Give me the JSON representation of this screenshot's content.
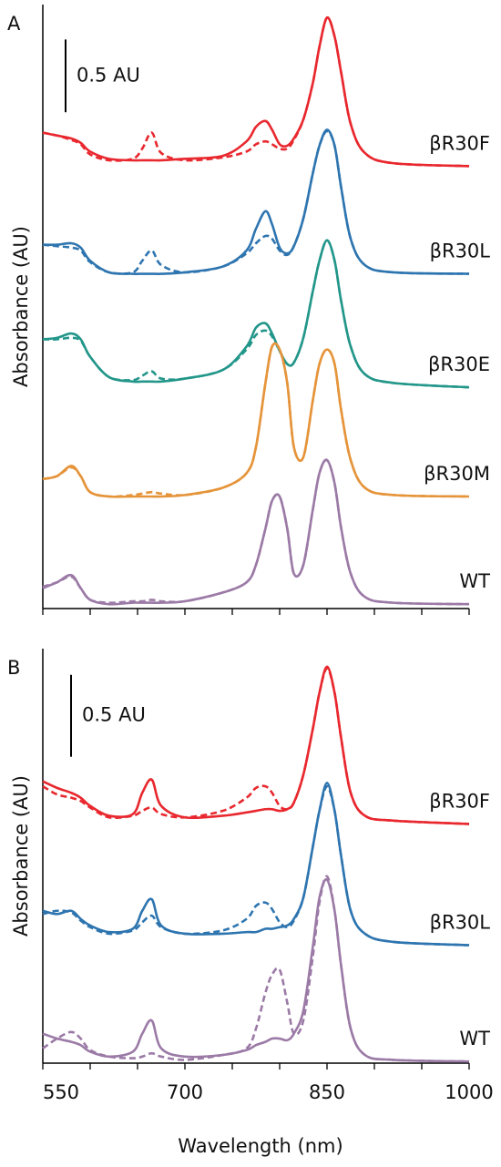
{
  "chart_data": [
    {
      "type": "line",
      "panel_label": "A",
      "ylabel": "Absorbance (AU)",
      "x": [
        550,
        565,
        580,
        590,
        600,
        620,
        645,
        655,
        665,
        675,
        700,
        740,
        765,
        775,
        785,
        792,
        800,
        808,
        815,
        825,
        835,
        842,
        850,
        858,
        865,
        875,
        890,
        920,
        1000
      ],
      "xlim": [
        550,
        1000
      ],
      "x_minor_ticks": [
        550,
        600,
        650,
        700,
        750,
        800,
        850,
        900,
        950,
        1000
      ],
      "ylim": [
        0,
        4.15
      ],
      "scale_bar": {
        "label": "0.5 AU",
        "from": 3.41,
        "to": 3.91
      },
      "series": [
        {
          "name": "βR30F",
          "color": "#e8282e",
          "values": [
            3.27,
            3.25,
            3.23,
            3.2,
            3.14,
            3.09,
            3.08,
            3.08,
            3.08,
            3.08,
            3.09,
            3.11,
            3.21,
            3.31,
            3.35,
            3.29,
            3.19,
            3.18,
            3.23,
            3.36,
            3.61,
            3.86,
            4.06,
            3.93,
            3.68,
            3.33,
            3.13,
            3.06,
            3.04
          ],
          "dashed_values": [
            3.27,
            3.25,
            3.22,
            3.19,
            3.12,
            3.08,
            3.09,
            3.16,
            3.27,
            3.13,
            3.08,
            3.1,
            3.14,
            3.19,
            3.21,
            3.19,
            3.16,
            3.16,
            3.22,
            3.36,
            3.61,
            3.86,
            4.06,
            3.93,
            3.68,
            3.33,
            3.13,
            3.06,
            3.04
          ]
        },
        {
          "name": "βR30L",
          "color": "#2e75b0",
          "values": [
            2.5,
            2.5,
            2.51,
            2.48,
            2.39,
            2.31,
            2.3,
            2.3,
            2.3,
            2.3,
            2.31,
            2.35,
            2.46,
            2.61,
            2.73,
            2.64,
            2.48,
            2.44,
            2.49,
            2.68,
            2.99,
            3.18,
            3.29,
            3.18,
            2.89,
            2.54,
            2.36,
            2.31,
            2.3
          ],
          "dashed_values": [
            2.5,
            2.49,
            2.48,
            2.46,
            2.38,
            2.31,
            2.31,
            2.39,
            2.46,
            2.36,
            2.31,
            2.35,
            2.44,
            2.51,
            2.56,
            2.54,
            2.46,
            2.43,
            2.49,
            2.68,
            2.99,
            3.18,
            3.28,
            3.18,
            2.89,
            2.54,
            2.36,
            2.31,
            2.3
          ]
        },
        {
          "name": "βR30E",
          "color": "#23968a",
          "values": [
            1.85,
            1.86,
            1.89,
            1.85,
            1.73,
            1.59,
            1.56,
            1.56,
            1.56,
            1.56,
            1.58,
            1.64,
            1.8,
            1.93,
            1.96,
            1.89,
            1.77,
            1.68,
            1.69,
            1.86,
            2.18,
            2.39,
            2.53,
            2.39,
            2.11,
            1.8,
            1.61,
            1.55,
            1.52
          ],
          "dashed_values": [
            1.85,
            1.85,
            1.86,
            1.84,
            1.73,
            1.59,
            1.57,
            1.6,
            1.63,
            1.58,
            1.58,
            1.64,
            1.78,
            1.88,
            1.91,
            1.87,
            1.77,
            1.68,
            1.69,
            1.86,
            2.18,
            2.39,
            2.53,
            2.39,
            2.11,
            1.8,
            1.61,
            1.55,
            1.52
          ]
        },
        {
          "name": "βR30M",
          "color": "#e5943a",
          "values": [
            0.89,
            0.91,
            0.98,
            0.91,
            0.8,
            0.77,
            0.77,
            0.77,
            0.77,
            0.77,
            0.78,
            0.83,
            0.93,
            1.11,
            1.55,
            1.8,
            1.78,
            1.55,
            1.11,
            1.04,
            1.43,
            1.68,
            1.78,
            1.68,
            1.36,
            1.02,
            0.83,
            0.78,
            0.77
          ],
          "dashed_values": [
            0.89,
            0.91,
            0.97,
            0.91,
            0.8,
            0.77,
            0.78,
            0.79,
            0.8,
            0.79,
            0.78,
            0.83,
            0.93,
            1.11,
            1.55,
            1.8,
            1.78,
            1.55,
            1.11,
            1.04,
            1.43,
            1.68,
            1.78,
            1.68,
            1.36,
            1.02,
            0.83,
            0.78,
            0.77
          ]
        },
        {
          "name": "WT",
          "color": "#9b7aa6",
          "values": [
            0.14,
            0.18,
            0.23,
            0.14,
            0.06,
            0.03,
            0.04,
            0.04,
            0.04,
            0.04,
            0.05,
            0.11,
            0.18,
            0.3,
            0.55,
            0.74,
            0.77,
            0.55,
            0.24,
            0.3,
            0.68,
            0.93,
            1.02,
            0.86,
            0.55,
            0.24,
            0.08,
            0.04,
            0.03
          ],
          "dashed_values": [
            0.15,
            0.18,
            0.22,
            0.14,
            0.06,
            0.04,
            0.05,
            0.05,
            0.06,
            0.05,
            0.05,
            0.11,
            0.18,
            0.3,
            0.55,
            0.74,
            0.77,
            0.55,
            0.24,
            0.3,
            0.68,
            0.93,
            1.02,
            0.86,
            0.55,
            0.24,
            0.08,
            0.04,
            0.03
          ]
        }
      ]
    },
    {
      "type": "line",
      "panel_label": "B",
      "ylabel": "Absorbance (AU)",
      "xlabel": "Wavelength (nm)",
      "x": [
        550,
        565,
        580,
        590,
        600,
        620,
        645,
        655,
        665,
        675,
        700,
        740,
        765,
        775,
        785,
        792,
        800,
        808,
        815,
        825,
        835,
        842,
        850,
        858,
        865,
        875,
        890,
        920,
        1000
      ],
      "xlim": [
        550,
        1000
      ],
      "xticks": [
        550,
        700,
        850,
        1000
      ],
      "x_minor_ticks": [
        600,
        650,
        750,
        800,
        900,
        950
      ],
      "ylim": [
        0,
        2.53
      ],
      "scale_bar": {
        "label": "0.5 AU",
        "from": 1.87,
        "to": 2.37
      },
      "series": [
        {
          "name": "βR30F",
          "color": "#e8282e",
          "values": [
            1.72,
            1.68,
            1.65,
            1.62,
            1.57,
            1.51,
            1.52,
            1.65,
            1.73,
            1.57,
            1.5,
            1.51,
            1.53,
            1.54,
            1.55,
            1.55,
            1.54,
            1.55,
            1.59,
            1.76,
            2.04,
            2.26,
            2.42,
            2.26,
            1.98,
            1.65,
            1.51,
            1.48,
            1.46
          ],
          "dashed_values": [
            1.69,
            1.64,
            1.62,
            1.6,
            1.56,
            1.5,
            1.51,
            1.54,
            1.56,
            1.52,
            1.5,
            1.54,
            1.62,
            1.68,
            1.69,
            1.65,
            1.57,
            1.55,
            1.59,
            1.76,
            2.04,
            2.26,
            2.41,
            2.26,
            1.98,
            1.65,
            1.51,
            1.48,
            1.46
          ]
        },
        {
          "name": "βR30L",
          "color": "#2e75b0",
          "values": [
            0.93,
            0.91,
            0.93,
            0.88,
            0.84,
            0.8,
            0.82,
            0.93,
            1.0,
            0.84,
            0.79,
            0.79,
            0.8,
            0.8,
            0.82,
            0.82,
            0.83,
            0.84,
            0.88,
            1.01,
            1.32,
            1.54,
            1.71,
            1.54,
            1.26,
            0.93,
            0.79,
            0.74,
            0.72
          ],
          "dashed_values": [
            0.91,
            0.93,
            0.92,
            0.87,
            0.83,
            0.79,
            0.81,
            0.86,
            0.9,
            0.83,
            0.79,
            0.81,
            0.88,
            0.96,
            0.98,
            0.94,
            0.86,
            0.83,
            0.87,
            1.01,
            1.32,
            1.54,
            1.69,
            1.54,
            1.26,
            0.93,
            0.79,
            0.74,
            0.72
          ]
        },
        {
          "name": "WT",
          "color": "#9b7aa6",
          "values": [
            0.18,
            0.15,
            0.13,
            0.11,
            0.07,
            0.04,
            0.07,
            0.18,
            0.26,
            0.09,
            0.04,
            0.05,
            0.08,
            0.11,
            0.13,
            0.15,
            0.15,
            0.14,
            0.18,
            0.32,
            0.71,
            1.01,
            1.12,
            0.93,
            0.59,
            0.21,
            0.05,
            0.02,
            0.01
          ],
          "dashed_values": [
            0.09,
            0.15,
            0.19,
            0.15,
            0.08,
            0.04,
            0.03,
            0.04,
            0.06,
            0.04,
            0.02,
            0.05,
            0.09,
            0.21,
            0.43,
            0.54,
            0.57,
            0.37,
            0.18,
            0.26,
            0.65,
            0.98,
            1.14,
            0.93,
            0.59,
            0.21,
            0.05,
            0.02,
            0.01
          ]
        }
      ]
    }
  ]
}
